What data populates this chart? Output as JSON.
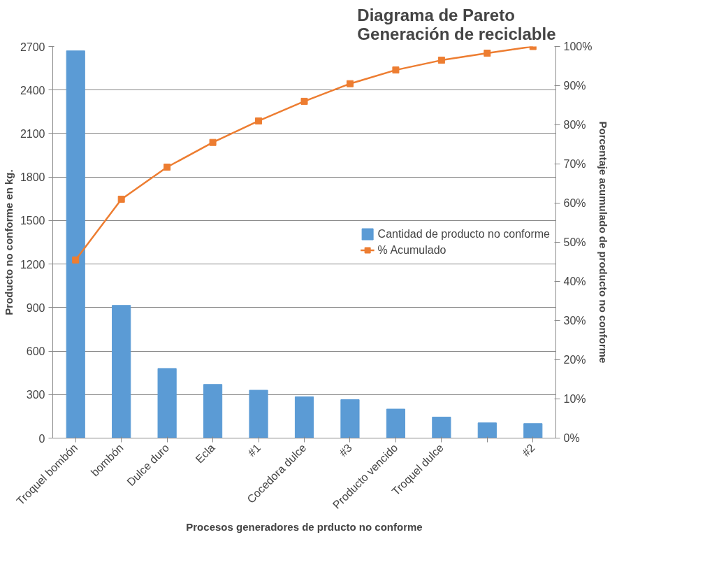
{
  "chart_data": {
    "type": "bar",
    "title": "Diagrama de Pareto\nGeneración de reciclable",
    "xlabel": "Procesos generadores de prducto no conforme",
    "ylabel": "Producto no conforme en kg.",
    "y2label": "Porcentaje acumulado de producto no conforme",
    "categories": [
      "Troquel bombón",
      "bombón",
      "Dulce duro",
      "Ecla",
      "#1",
      "Cocedora dulce",
      "#3",
      "Producto vencido",
      "Troquel dulce",
      null,
      "#2"
    ],
    "series": [
      {
        "name": "Cantidad de producto no conforme",
        "color": "#5b9bd5",
        "values": [
          2670,
          915,
          480,
          370,
          330,
          285,
          265,
          200,
          145,
          105,
          100
        ]
      },
      {
        "name": "% Acumulado",
        "type": "line",
        "axis": "y2",
        "color": "#ed7d31",
        "marker": "square",
        "values": [
          45.5,
          61,
          69.2,
          75.5,
          81,
          86,
          90.5,
          94,
          96.5,
          98.3,
          100
        ]
      }
    ],
    "ylim": [
      0,
      2700
    ],
    "yticks": [
      0,
      300,
      600,
      900,
      1200,
      1500,
      1800,
      2100,
      2400,
      2700
    ],
    "y2lim": [
      0,
      100
    ],
    "y2ticks": [
      {
        "value": 0,
        "label": "0%"
      },
      {
        "value": 10,
        "label": "10%"
      },
      {
        "value": 20,
        "label": "20%"
      },
      {
        "value": 30,
        "label": "30%"
      },
      {
        "value": 40,
        "label": "40%"
      },
      {
        "value": 50,
        "label": "50%"
      },
      {
        "value": 60,
        "label": "60%"
      },
      {
        "value": 70,
        "label": "70%"
      },
      {
        "value": 80,
        "label": "80%"
      },
      {
        "value": 90,
        "label": "90%"
      },
      {
        "value": 100,
        "label": "100%"
      }
    ],
    "grid": "y",
    "legend": "right"
  }
}
